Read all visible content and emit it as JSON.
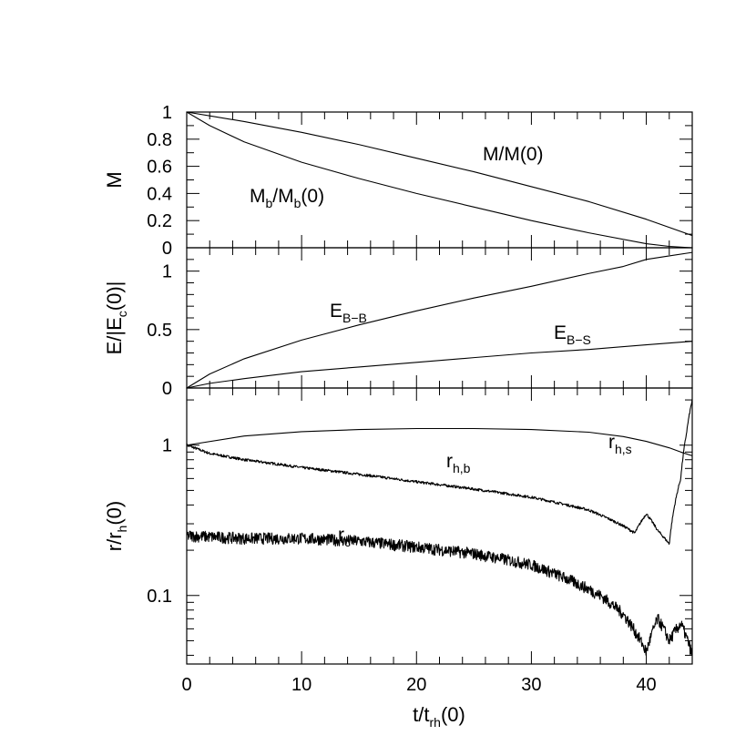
{
  "chart_data": [
    {
      "type": "line",
      "panel": "top",
      "ylabel": "M",
      "xlim": [
        0,
        44
      ],
      "ylim": [
        0,
        1
      ],
      "yticks": [
        "0",
        "0.2",
        "0.4",
        "0.6",
        "0.8",
        "1"
      ],
      "series": [
        {
          "name": "M/M(0)",
          "label_main": "M/M(0)",
          "x": [
            0,
            5,
            10,
            15,
            20,
            25,
            30,
            35,
            40,
            44
          ],
          "values": [
            1.0,
            0.93,
            0.85,
            0.76,
            0.66,
            0.56,
            0.45,
            0.34,
            0.21,
            0.09
          ]
        },
        {
          "name": "Mb/Mb(0)",
          "label_main": "M",
          "label_sub": "b",
          "label_mid": "/M",
          "label_sub2": "b",
          "label_end": "(0)",
          "x": [
            0,
            2,
            5,
            10,
            15,
            20,
            25,
            30,
            35,
            40,
            42,
            44
          ],
          "values": [
            1.0,
            0.9,
            0.78,
            0.63,
            0.51,
            0.4,
            0.3,
            0.2,
            0.11,
            0.03,
            0.01,
            0.0
          ]
        }
      ]
    },
    {
      "type": "line",
      "panel": "middle",
      "ylabel": "E/|Ec(0)|",
      "ylabel_parts": [
        "E/|E",
        "c",
        "(0)|"
      ],
      "xlim": [
        0,
        44
      ],
      "ylim": [
        0,
        1.2
      ],
      "yticks": [
        "0",
        "0.5",
        "1"
      ],
      "series": [
        {
          "name": "EB-B",
          "label_main": "E",
          "label_sub": "B−B",
          "x": [
            0,
            2,
            5,
            10,
            15,
            20,
            25,
            30,
            35,
            38,
            40,
            42,
            44
          ],
          "values": [
            0.0,
            0.12,
            0.25,
            0.41,
            0.54,
            0.66,
            0.77,
            0.87,
            0.98,
            1.04,
            1.1,
            1.13,
            1.16
          ]
        },
        {
          "name": "EB-S",
          "label_main": "E",
          "label_sub": "B−S",
          "x": [
            0,
            2,
            5,
            10,
            15,
            20,
            25,
            30,
            35,
            40,
            44
          ],
          "values": [
            0.0,
            0.04,
            0.08,
            0.14,
            0.18,
            0.22,
            0.26,
            0.3,
            0.33,
            0.37,
            0.4
          ]
        }
      ]
    },
    {
      "type": "line",
      "panel": "bottom",
      "yscale": "log",
      "ylabel_parts": [
        "r/r",
        "h",
        "(0)"
      ],
      "xlabel_parts": [
        "t/t",
        "rh",
        "(0)"
      ],
      "xlim": [
        0,
        44
      ],
      "ylim": [
        0.035,
        2.4
      ],
      "xticks": [
        "0",
        "10",
        "20",
        "30",
        "40"
      ],
      "yticks": [
        "0.1",
        "1"
      ],
      "series": [
        {
          "name": "rh,s",
          "label_main": "r",
          "label_sub": "h,s",
          "x": [
            0,
            5,
            10,
            15,
            20,
            25,
            30,
            35,
            38,
            40,
            42,
            43,
            44
          ],
          "values": [
            1.0,
            1.15,
            1.23,
            1.27,
            1.29,
            1.29,
            1.27,
            1.22,
            1.14,
            1.06,
            0.96,
            0.9,
            0.85
          ]
        },
        {
          "name": "rh,b",
          "label_main": "r",
          "label_sub": "h,b",
          "noise": 0.02,
          "x": [
            0,
            2,
            5,
            10,
            15,
            20,
            25,
            30,
            35,
            38,
            39,
            40,
            41,
            42,
            43,
            43.5,
            44
          ],
          "values": [
            1.0,
            0.88,
            0.8,
            0.71,
            0.64,
            0.57,
            0.51,
            0.45,
            0.37,
            0.29,
            0.26,
            0.35,
            0.27,
            0.22,
            0.6,
            1.2,
            2.0
          ]
        },
        {
          "name": "rc",
          "label_main": "r",
          "label_sub": "c",
          "noise": 0.09,
          "x": [
            0,
            5,
            10,
            15,
            20,
            25,
            30,
            33,
            36,
            38,
            39,
            40,
            41,
            42,
            43,
            44
          ],
          "values": [
            0.25,
            0.24,
            0.24,
            0.23,
            0.21,
            0.19,
            0.16,
            0.13,
            0.1,
            0.075,
            0.058,
            0.042,
            0.07,
            0.05,
            0.065,
            0.04
          ]
        }
      ]
    }
  ]
}
